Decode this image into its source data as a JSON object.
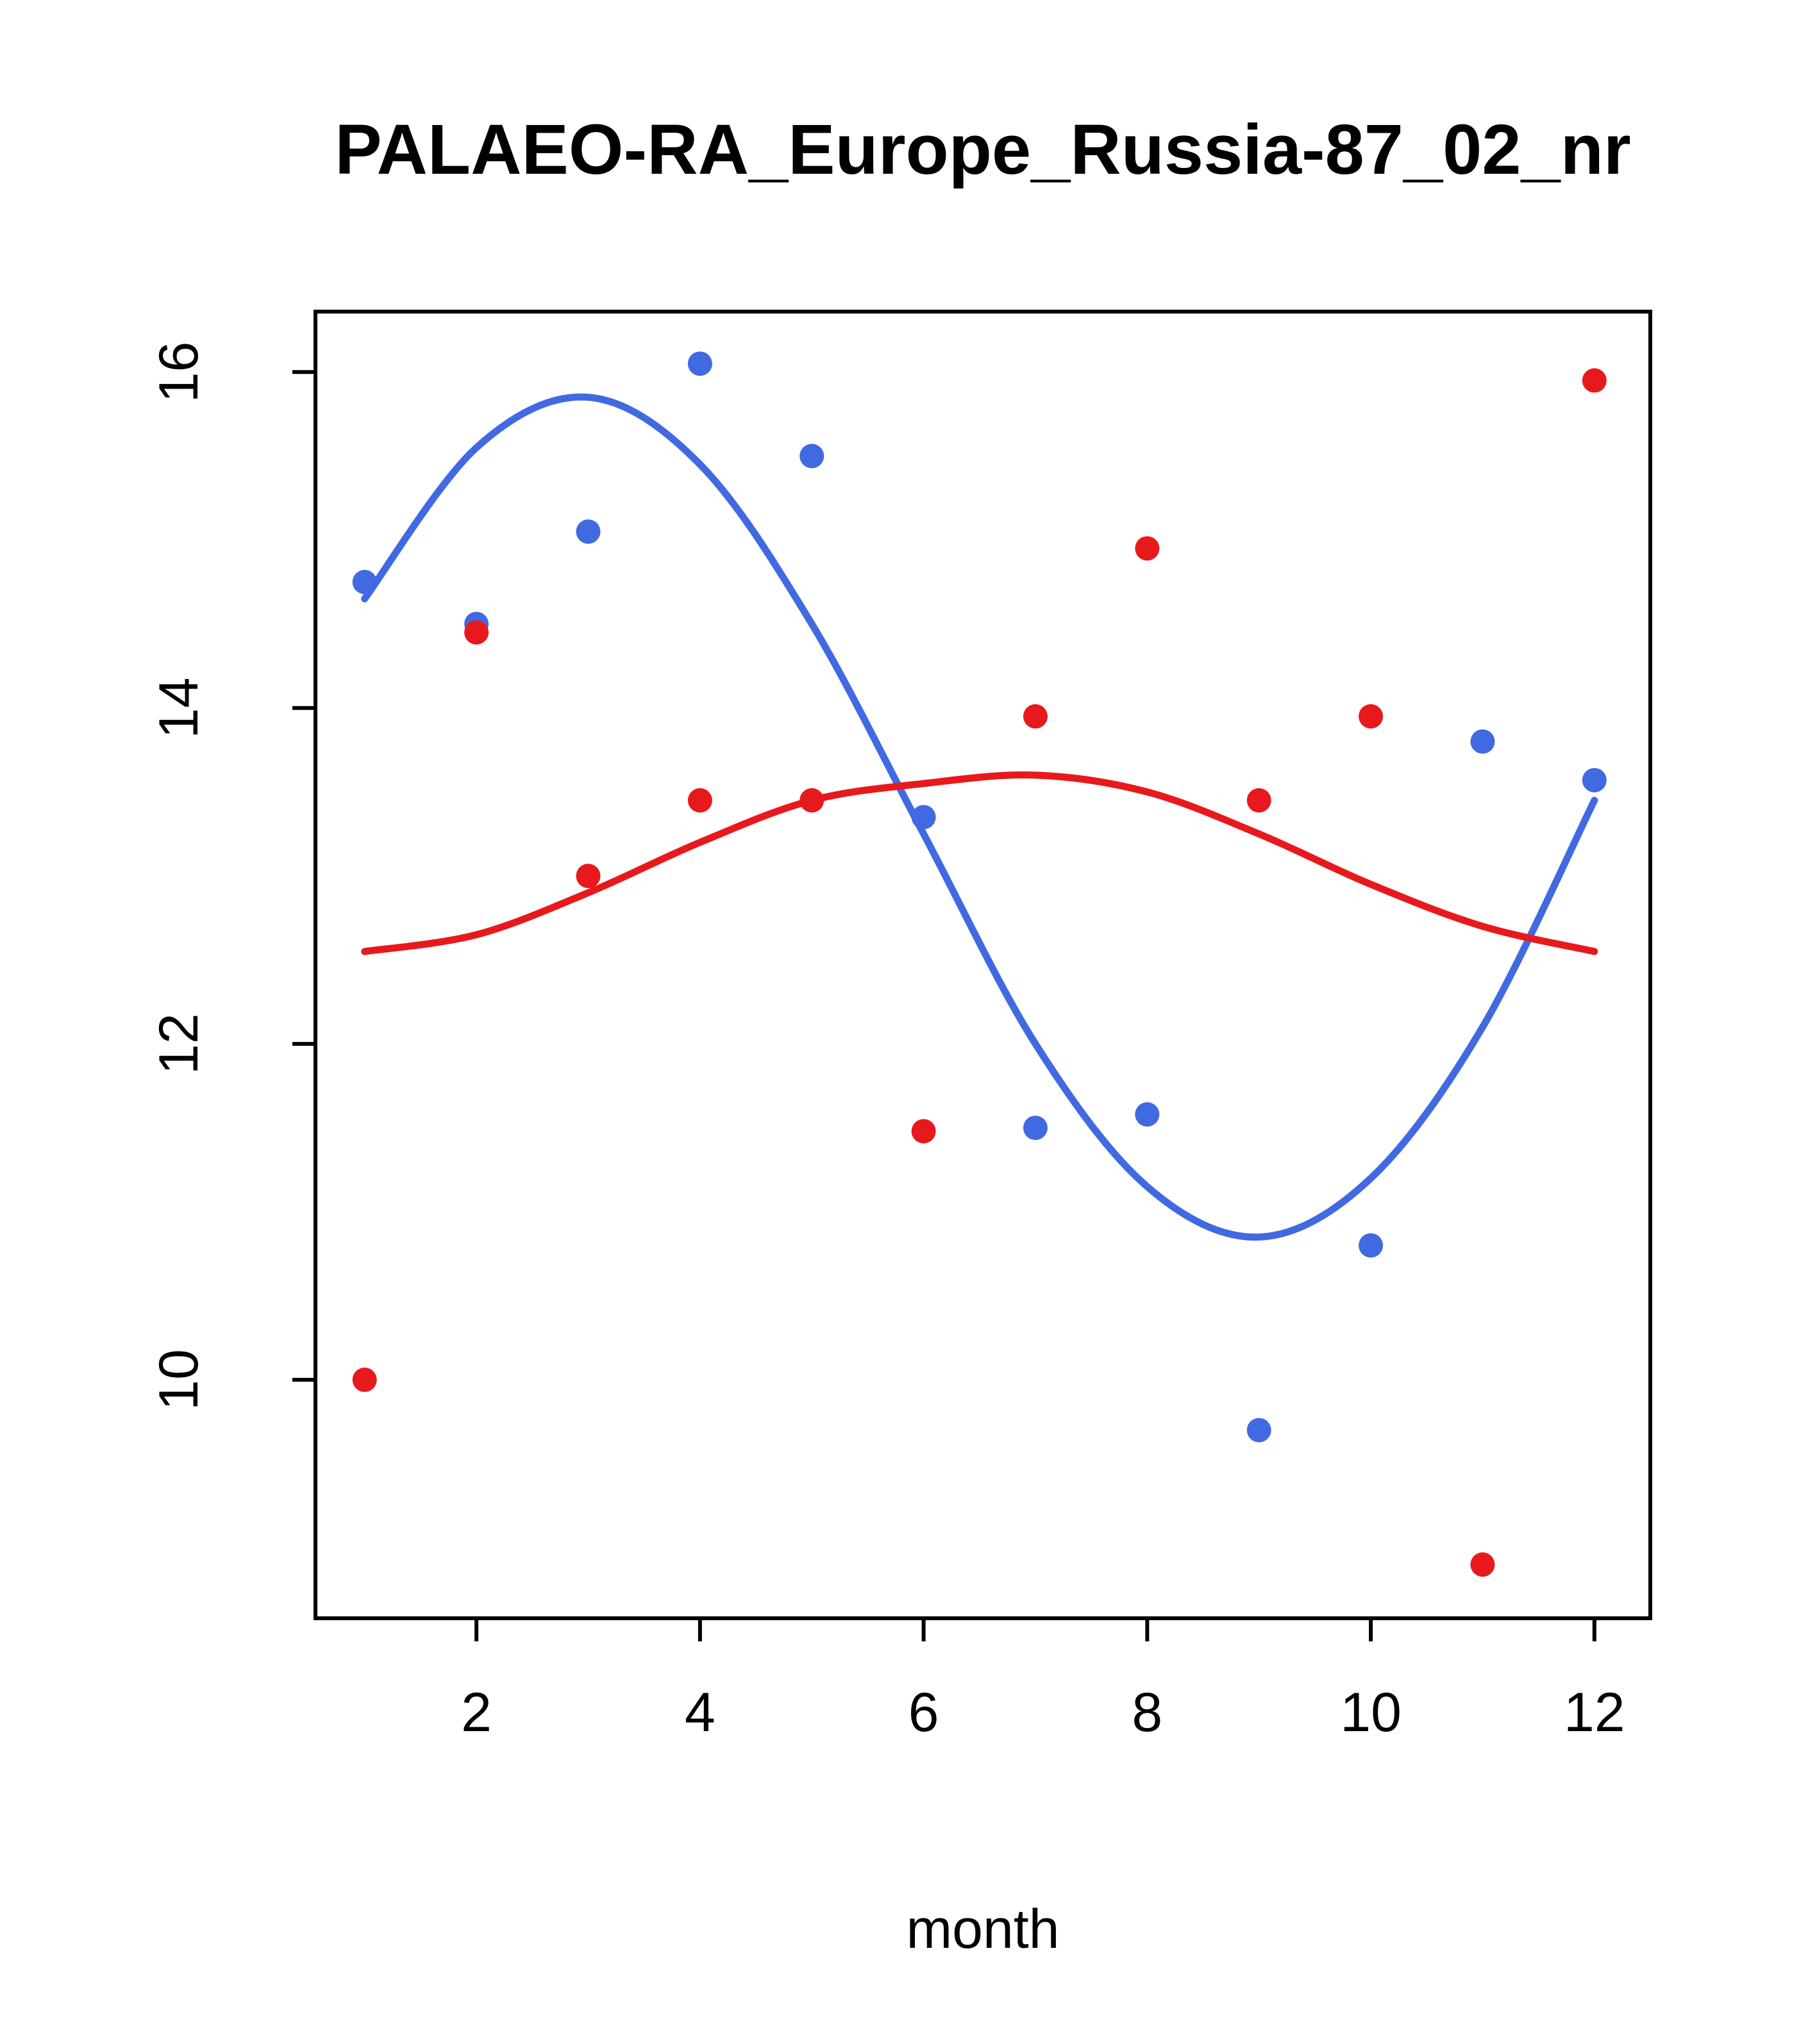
{
  "chart_data": {
    "type": "scatter",
    "title": "PALAEO-RA_Europe_Russia-87_02_nr",
    "xlabel": "month",
    "ylabel": "",
    "xlim": [
      0.56,
      12.5
    ],
    "ylim": [
      8.58,
      16.36
    ],
    "xticks": [
      2,
      4,
      6,
      8,
      10,
      12
    ],
    "yticks": [
      10,
      12,
      14,
      16
    ],
    "grid": false,
    "legend": "none",
    "colors": {
      "blue": "#4169e1",
      "red": "#e8191c"
    },
    "months": [
      1,
      2,
      3,
      4,
      5,
      6,
      7,
      8,
      9,
      10,
      11,
      12
    ],
    "series": [
      {
        "name": "blue-smooth-line",
        "type": "line",
        "color": "blue",
        "values": [
          14.65,
          15.55,
          15.85,
          15.45,
          14.5,
          13.25,
          12.0,
          11.15,
          10.85,
          11.2,
          12.1,
          13.45
        ]
      },
      {
        "name": "red-smooth-line",
        "type": "line",
        "color": "red",
        "values": [
          12.55,
          12.65,
          12.9,
          13.2,
          13.45,
          13.55,
          13.6,
          13.5,
          13.25,
          12.95,
          12.7,
          12.55
        ]
      },
      {
        "name": "blue-points",
        "type": "points",
        "color": "blue",
        "values": [
          14.75,
          14.5,
          15.05,
          16.05,
          15.5,
          13.35,
          11.5,
          11.58,
          9.7,
          10.8,
          13.8,
          13.57
        ]
      },
      {
        "name": "red-points",
        "type": "points",
        "color": "red",
        "values": [
          10.0,
          14.45,
          13.0,
          13.45,
          13.45,
          11.48,
          13.95,
          14.95,
          13.45,
          13.95,
          8.9,
          15.95
        ]
      }
    ]
  }
}
